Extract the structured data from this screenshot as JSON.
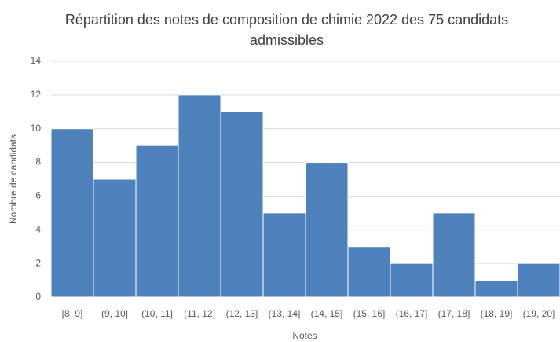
{
  "chart_data": {
    "type": "bar",
    "title": "Répartition des notes de composition de chimie 2022 des 75 candidats admissibles",
    "x_label": "Notes",
    "y_label": "Nombre de candidats",
    "categories": [
      "[8, 9]",
      "(9, 10]",
      "(10, 11]",
      "(11, 12]",
      "(12, 13]",
      "(13, 14]",
      "(14, 15]",
      "(15, 16]",
      "(16, 17]",
      "(17, 18]",
      "(18, 19]",
      "(19, 20]"
    ],
    "values": [
      10,
      7,
      9,
      12,
      11,
      5,
      8,
      3,
      2,
      5,
      1,
      2
    ],
    "color": "#4f81bd",
    "ylim": [
      0,
      14
    ],
    "yticks": [
      0,
      2,
      4,
      6,
      8,
      10,
      12,
      14
    ],
    "grid": true
  }
}
